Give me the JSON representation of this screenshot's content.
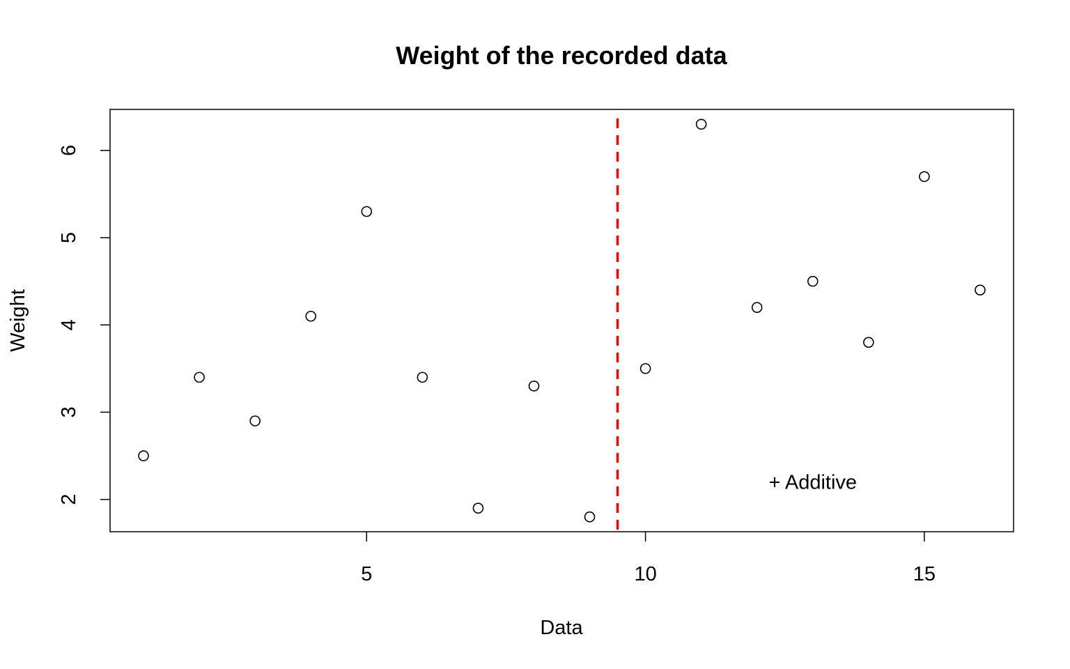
{
  "chart_data": {
    "type": "scatter",
    "title": "Weight of the recorded data",
    "xlabel": "Data",
    "ylabel": "Weight",
    "xlim": [
      0.4,
      16.6
    ],
    "ylim": [
      1.63,
      6.47
    ],
    "x_ticks": [
      5,
      10,
      15
    ],
    "y_ticks": [
      2,
      3,
      4,
      5,
      6
    ],
    "grid": false,
    "points": [
      {
        "x": 1,
        "y": 2.5
      },
      {
        "x": 2,
        "y": 3.4
      },
      {
        "x": 3,
        "y": 2.9
      },
      {
        "x": 4,
        "y": 4.1
      },
      {
        "x": 5,
        "y": 5.3
      },
      {
        "x": 6,
        "y": 3.4
      },
      {
        "x": 7,
        "y": 1.9
      },
      {
        "x": 8,
        "y": 3.3
      },
      {
        "x": 9,
        "y": 1.8
      },
      {
        "x": 10,
        "y": 3.5
      },
      {
        "x": 11,
        "y": 6.3
      },
      {
        "x": 12,
        "y": 4.2
      },
      {
        "x": 13,
        "y": 4.5
      },
      {
        "x": 14,
        "y": 3.8
      },
      {
        "x": 15,
        "y": 5.7
      },
      {
        "x": 16,
        "y": 4.4
      }
    ],
    "vline": {
      "x": 9.5,
      "color": "#ff0000",
      "style": "dashed"
    },
    "annotation": {
      "text": "+ Additive",
      "x": 13,
      "y": 2.2
    }
  }
}
